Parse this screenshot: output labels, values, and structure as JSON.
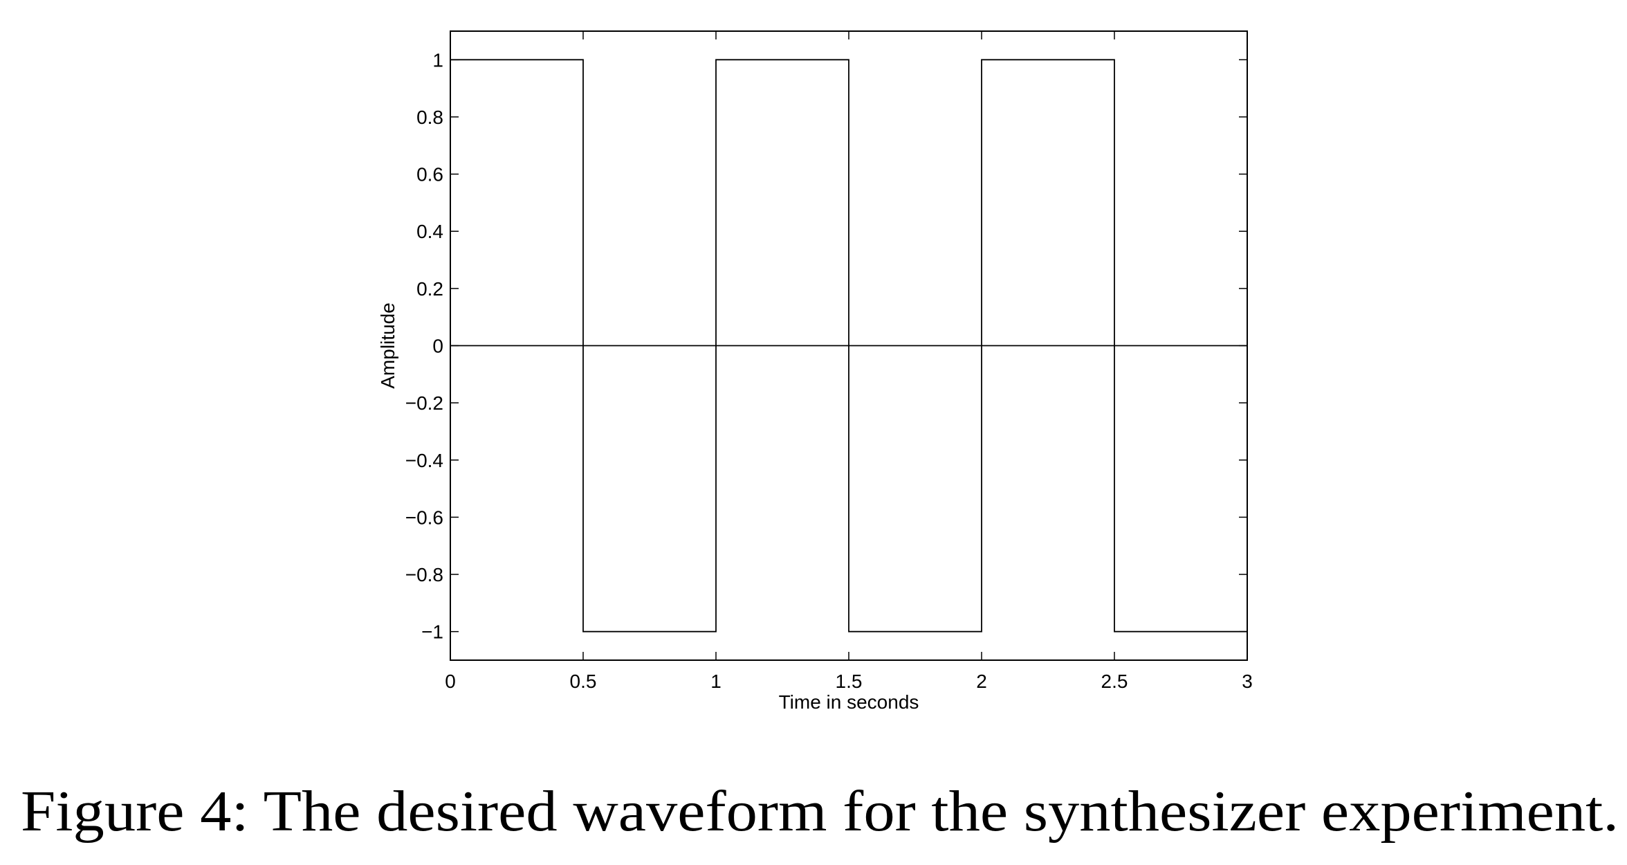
{
  "chart_data": {
    "type": "line",
    "xlabel": "Time in seconds",
    "ylabel": "Amplitude",
    "caption": "Figure 4: The desired waveform for the synthesizer experiment.",
    "series": [
      {
        "color": "#000000",
        "x": [
          0,
          0.5,
          0.5,
          1,
          1,
          1.5,
          1.5,
          2,
          2,
          2.5,
          2.5,
          3
        ],
        "values": [
          1,
          1,
          -1,
          -1,
          1,
          1,
          -1,
          -1,
          1,
          1,
          -1,
          -1
        ]
      },
      {
        "color": "#000000",
        "x": [
          0,
          3
        ],
        "values": [
          0,
          0
        ]
      }
    ],
    "xlim": [
      0,
      3
    ],
    "xticks": [
      0,
      0.5,
      1,
      1.5,
      2,
      2.5,
      3
    ],
    "ylim": [
      -1.1,
      1.1
    ],
    "yticks": [
      {
        "value": -1,
        "label": "−1"
      },
      {
        "value": -0.8,
        "label": "−0.8"
      },
      {
        "value": -0.6,
        "label": "−0.6"
      },
      {
        "value": -0.4,
        "label": "−0.4"
      },
      {
        "value": -0.2,
        "label": "−0.2"
      },
      0,
      0.2,
      0.4,
      0.6,
      0.8,
      1
    ],
    "grid": false
  }
}
